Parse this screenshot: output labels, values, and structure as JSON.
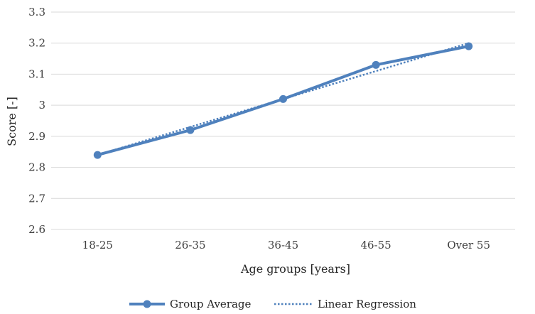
{
  "chart_data": {
    "type": "line",
    "categories": [
      "18-25",
      "26-35",
      "36-45",
      "46-55",
      "Over 55"
    ],
    "series": [
      {
        "name": "Group Average",
        "values": [
          2.84,
          2.92,
          3.02,
          3.13,
          3.19
        ],
        "color": "#4f81bd",
        "style": "solid-with-markers"
      },
      {
        "name": "Linear Regression",
        "values": [
          2.84,
          2.93,
          3.02,
          3.11,
          3.2
        ],
        "color": "#4f81bd",
        "style": "dotted"
      }
    ],
    "xlabel": "Age groups [years]",
    "ylabel": "Score [-]",
    "ylim": [
      2.6,
      3.3
    ],
    "yticks": [
      "2.6",
      "2.7",
      "2.8",
      "2.9",
      "3",
      "3.1",
      "3.2",
      "3.3"
    ],
    "grid": true,
    "legend_position": "bottom-center",
    "gridline_color": "#d9d9d9"
  }
}
